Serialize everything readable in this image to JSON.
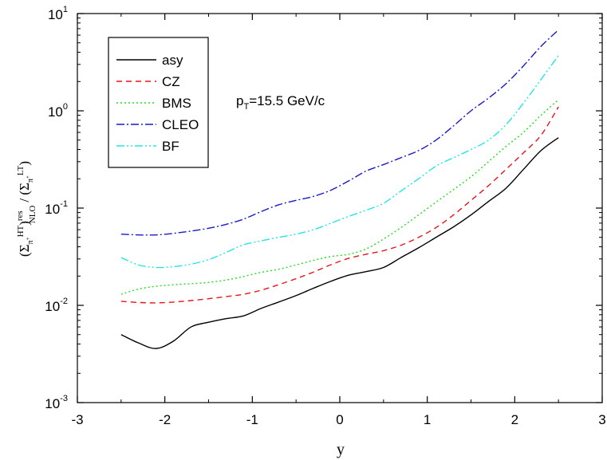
{
  "chart_data": {
    "type": "line",
    "title": "",
    "xlabel": "y",
    "ylabel": "(Σ_π+^HT)^res_NLO / (Σ_π+^LT)",
    "ylabel_parts": {
      "open": "(",
      "sigma": "Σ",
      "sub_pi": "π",
      "sub_plus": "+",
      "sup_ht": "HT",
      "close": ")",
      "sup_res": "res",
      "sub_nlo": "NLO",
      "divider": "/ (",
      "sigma2": "Σ",
      "sub_pi2": "π",
      "sub_plus2": "+",
      "sup_lt": "LT",
      "close2": ")"
    },
    "xlim": [
      -3,
      3
    ],
    "ylim": [
      0.001,
      10
    ],
    "yscale": "log",
    "grid": false,
    "legend_position": "top-left",
    "annotation": {
      "p": "p",
      "sub": "T",
      "rest": "=15.5 GeV/c"
    },
    "x_ticks": [
      "-3",
      "-2",
      "-1",
      "0",
      "1",
      "2",
      "3"
    ],
    "y_ticks": [
      {
        "base": "10",
        "exp": "-3"
      },
      {
        "base": "10",
        "exp": "-2"
      },
      {
        "base": "10",
        "exp": "-1"
      },
      {
        "base": "10",
        "exp": "0"
      },
      {
        "base": "10",
        "exp": "1"
      }
    ],
    "series": [
      {
        "name": "asy",
        "color": "#000000",
        "dash": "",
        "x": [
          -2.5,
          -2.3,
          -2.1,
          -1.9,
          -1.7,
          -1.5,
          -1.3,
          -1.1,
          -0.9,
          -0.7,
          -0.5,
          -0.3,
          -0.1,
          0.1,
          0.3,
          0.5,
          0.7,
          0.9,
          1.1,
          1.3,
          1.5,
          1.7,
          1.9,
          2.1,
          2.3,
          2.5
        ],
        "y": [
          0.005,
          0.0041,
          0.0036,
          0.0043,
          0.006,
          0.0067,
          0.0073,
          0.0078,
          0.0093,
          0.0108,
          0.0126,
          0.015,
          0.0177,
          0.0204,
          0.0222,
          0.0245,
          0.031,
          0.039,
          0.05,
          0.064,
          0.085,
          0.117,
          0.16,
          0.25,
          0.39,
          0.53
        ]
      },
      {
        "name": "CZ",
        "color": "#e8141c",
        "dash": "7,5",
        "x": [
          -2.5,
          -2.3,
          -2.1,
          -1.9,
          -1.7,
          -1.5,
          -1.3,
          -1.1,
          -0.9,
          -0.7,
          -0.5,
          -0.3,
          -0.1,
          0.1,
          0.3,
          0.5,
          0.7,
          0.9,
          1.1,
          1.3,
          1.5,
          1.7,
          1.9,
          2.1,
          2.3,
          2.5
        ],
        "y": [
          0.011,
          0.0107,
          0.0106,
          0.0108,
          0.0112,
          0.0117,
          0.0123,
          0.013,
          0.0143,
          0.0163,
          0.0188,
          0.022,
          0.0262,
          0.0304,
          0.0335,
          0.0365,
          0.0415,
          0.05,
          0.063,
          0.085,
          0.12,
          0.17,
          0.25,
          0.37,
          0.56,
          1.1
        ]
      },
      {
        "name": "BMS",
        "color": "#22dd22",
        "dash": "2,3",
        "x": [
          -2.5,
          -2.3,
          -2.1,
          -1.9,
          -1.7,
          -1.5,
          -1.3,
          -1.1,
          -0.9,
          -0.7,
          -0.5,
          -0.3,
          -0.1,
          0.1,
          0.3,
          0.5,
          0.7,
          0.9,
          1.1,
          1.3,
          1.5,
          1.7,
          1.9,
          2.1,
          2.3,
          2.5
        ],
        "y": [
          0.013,
          0.0147,
          0.0157,
          0.0163,
          0.0167,
          0.0172,
          0.0182,
          0.0198,
          0.0218,
          0.0235,
          0.026,
          0.029,
          0.0318,
          0.0335,
          0.038,
          0.048,
          0.063,
          0.085,
          0.115,
          0.155,
          0.21,
          0.3,
          0.43,
          0.6,
          0.9,
          1.3
        ]
      },
      {
        "name": "CLEO",
        "color": "#1a1ac8",
        "dash": "10,3,2,3",
        "x": [
          -2.5,
          -2.3,
          -2.1,
          -1.9,
          -1.7,
          -1.5,
          -1.3,
          -1.1,
          -0.9,
          -0.7,
          -0.5,
          -0.3,
          -0.1,
          0.1,
          0.3,
          0.5,
          0.7,
          0.9,
          1.1,
          1.3,
          1.5,
          1.7,
          1.9,
          2.1,
          2.3,
          2.5
        ],
        "y": [
          0.054,
          0.053,
          0.053,
          0.055,
          0.058,
          0.062,
          0.068,
          0.077,
          0.092,
          0.108,
          0.12,
          0.132,
          0.153,
          0.19,
          0.24,
          0.28,
          0.33,
          0.39,
          0.5,
          0.7,
          1.0,
          1.35,
          1.9,
          2.9,
          4.6,
          6.8
        ]
      },
      {
        "name": "BF",
        "color": "#22e6e6",
        "dash": "10,3,2,3,2,3",
        "x": [
          -2.5,
          -2.3,
          -2.1,
          -1.9,
          -1.7,
          -1.5,
          -1.3,
          -1.1,
          -0.9,
          -0.7,
          -0.5,
          -0.3,
          -0.1,
          0.1,
          0.3,
          0.5,
          0.7,
          0.9,
          1.1,
          1.3,
          1.5,
          1.7,
          1.9,
          2.1,
          2.3,
          2.5
        ],
        "y": [
          0.031,
          0.026,
          0.0245,
          0.025,
          0.0265,
          0.0295,
          0.035,
          0.042,
          0.046,
          0.05,
          0.054,
          0.06,
          0.07,
          0.082,
          0.095,
          0.112,
          0.15,
          0.2,
          0.27,
          0.33,
          0.4,
          0.5,
          0.72,
          1.2,
          2.1,
          3.7
        ]
      }
    ]
  }
}
